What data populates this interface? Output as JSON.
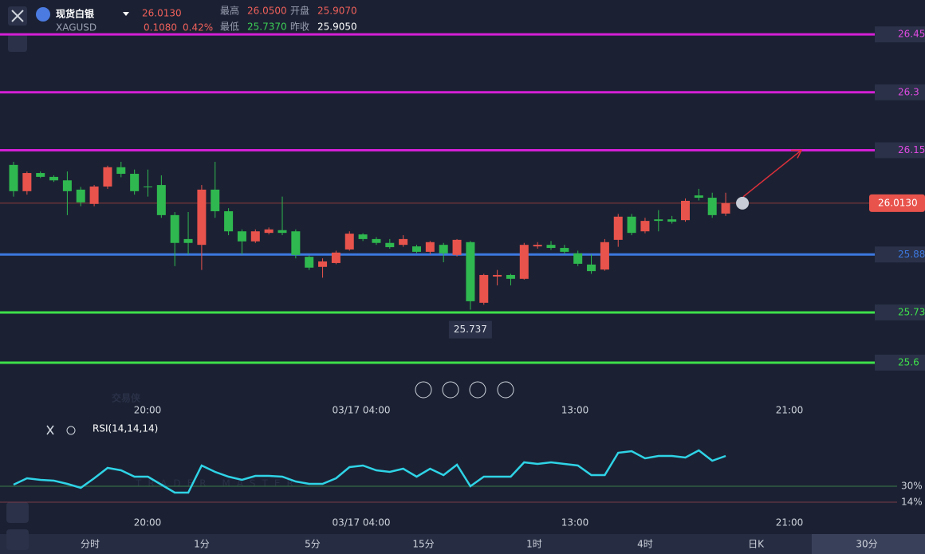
{
  "header": {
    "name": "现货白银",
    "symbol": "XAGUSD",
    "price": "26.0130",
    "change": "0.1080",
    "change_pct": "0.42%",
    "stats": [
      {
        "label": "最高",
        "value": "26.0500"
      },
      {
        "label": "开盘",
        "value": "25.9070"
      },
      {
        "label": "最低",
        "value": "25.7370"
      },
      {
        "label": "昨收",
        "value": "25.9050"
      }
    ]
  },
  "watermark": {
    "text": "交易侠",
    "sub": "TRADER MASTER"
  },
  "time_labels": [
    "20:00",
    "03/17 04:00",
    "13:00",
    "21:00"
  ],
  "chart_data": [
    {
      "type": "candlestick",
      "up_color": "#e8534c",
      "down_color": "#2fb84f",
      "ylim": [
        25.507,
        26.539
      ],
      "open": [
        26.112,
        26.044,
        26.091,
        26.081,
        26.072,
        26.048,
        26.011,
        26.056,
        26.106,
        26.089,
        26.056,
        26.06,
        25.982,
        25.92,
        25.905,
        26.048,
        25.992,
        25.94,
        25.914,
        25.936,
        25.943,
        25.94,
        25.874,
        25.848,
        25.858,
        25.893,
        25.932,
        25.92,
        25.91,
        25.905,
        25.901,
        25.887,
        25.905,
        25.879,
        25.912,
        25.755,
        25.823,
        25.827,
        25.817,
        25.901,
        25.905,
        25.897,
        25.883,
        25.854,
        25.841,
        25.918,
        25.978,
        25.94,
        25.971,
        25.971,
        25.969,
        26.033,
        26.027,
        25.986
      ],
      "high": [
        26.12,
        26.095,
        26.095,
        26.085,
        26.095,
        26.055,
        26.06,
        26.11,
        26.12,
        26.1,
        26.1,
        26.085,
        25.99,
        25.99,
        26.06,
        26.12,
        26.0,
        25.945,
        25.945,
        25.95,
        26.03,
        25.945,
        25.878,
        25.87,
        25.89,
        25.94,
        25.935,
        25.925,
        25.92,
        25.93,
        25.905,
        25.915,
        25.91,
        25.92,
        25.915,
        25.83,
        25.84,
        25.83,
        25.91,
        25.912,
        25.915,
        25.905,
        25.89,
        25.88,
        25.92,
        25.985,
        25.985,
        25.975,
        25.995,
        25.98,
        26.025,
        26.05,
        26.04,
        26.04
      ],
      "low": [
        26.03,
        26.035,
        26.078,
        26.068,
        25.982,
        26.005,
        26.005,
        26.05,
        26.08,
        26.035,
        26.03,
        25.975,
        25.85,
        25.88,
        25.84,
        25.975,
        25.93,
        25.88,
        25.91,
        25.932,
        25.93,
        25.87,
        25.84,
        25.82,
        25.855,
        25.89,
        25.915,
        25.905,
        25.895,
        25.9,
        25.884,
        25.88,
        25.86,
        25.875,
        25.737,
        25.75,
        25.8,
        25.8,
        25.815,
        25.895,
        25.892,
        25.882,
        25.85,
        25.83,
        25.838,
        25.9,
        25.93,
        25.935,
        25.94,
        25.96,
        25.965,
        26.02,
        25.975,
        25.98
      ],
      "close": [
        26.044,
        26.091,
        26.081,
        26.072,
        26.044,
        26.015,
        26.056,
        26.106,
        26.089,
        26.044,
        26.054,
        25.982,
        25.91,
        25.91,
        26.048,
        25.992,
        25.94,
        25.914,
        25.94,
        25.945,
        25.936,
        25.879,
        25.846,
        25.862,
        25.885,
        25.934,
        25.92,
        25.91,
        25.899,
        25.92,
        25.887,
        25.912,
        25.883,
        25.918,
        25.759,
        25.827,
        25.827,
        25.817,
        25.905,
        25.905,
        25.897,
        25.887,
        25.856,
        25.837,
        25.912,
        25.978,
        25.936,
        25.967,
        25.967,
        25.965,
        26.019,
        26.027,
        25.982,
        26.013
      ],
      "levels": [
        {
          "value": 26.45,
          "color": "#d41fd6"
        },
        {
          "value": 26.3,
          "color": "#d41fd6"
        },
        {
          "value": 26.15,
          "color": "#d41fd6"
        },
        {
          "value": 25.88,
          "color": "#3d78e0"
        },
        {
          "value": 25.73,
          "color": "#3ee04a"
        },
        {
          "value": 25.6,
          "color": "#3ee04a"
        }
      ],
      "current": {
        "value": 26.013,
        "label": "26.0130"
      },
      "low_label": 25.737
    },
    {
      "type": "line",
      "title": "RSI(14,14,14)",
      "color": "#2fd3e6",
      "ylim": [
        -14,
        82
      ],
      "yticks": [
        {
          "value": 30,
          "label": "30%"
        },
        {
          "value": 14,
          "label": "14%"
        }
      ],
      "values": [
        31.6,
        38,
        36.4,
        35.6,
        32.4,
        28.4,
        38,
        48.4,
        46,
        39.6,
        39.6,
        31.6,
        23.6,
        23.6,
        50.8,
        44.4,
        39.6,
        36.4,
        40.4,
        40.4,
        39.6,
        34.8,
        32.4,
        32.4,
        38,
        49.2,
        50.8,
        46,
        44.4,
        47.6,
        39.6,
        47.6,
        41.2,
        51.6,
        30,
        39.6,
        39.6,
        39.6,
        54,
        52.4,
        54,
        52.4,
        50.8,
        41.2,
        41.2,
        63.6,
        65.2,
        58,
        60.4,
        60.4,
        58.8,
        66,
        55.6,
        60.4
      ]
    }
  ],
  "tabs": [
    "分时",
    "1分",
    "5分",
    "15分",
    "1时",
    "4时",
    "日K",
    "30分"
  ]
}
